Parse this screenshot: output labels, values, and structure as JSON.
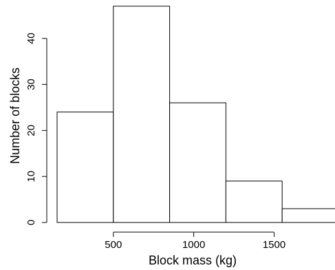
{
  "chart_data": {
    "type": "bar",
    "subtype": "histogram",
    "title": "",
    "xlabel": "Block mass (kg)",
    "ylabel": "Number of blocks",
    "bins": [
      {
        "start": 150,
        "end": 500,
        "count": 24
      },
      {
        "start": 500,
        "end": 850,
        "count": 47
      },
      {
        "start": 850,
        "end": 1200,
        "count": 26
      },
      {
        "start": 1200,
        "end": 1550,
        "count": 9
      },
      {
        "start": 1550,
        "end": 1900,
        "count": 3
      }
    ],
    "x_ticks": [
      500,
      1000,
      1500
    ],
    "x_tick_labels": [
      "500",
      "1000",
      "1500"
    ],
    "y_ticks": [
      0,
      10,
      20,
      30,
      40
    ],
    "y_tick_labels": [
      "0",
      "10",
      "20",
      "30",
      "40"
    ],
    "xlim": [
      150,
      1900
    ],
    "ylim": [
      0,
      47
    ],
    "grid": false,
    "bar_fill": "#ffffff",
    "bar_stroke": "#000000"
  }
}
